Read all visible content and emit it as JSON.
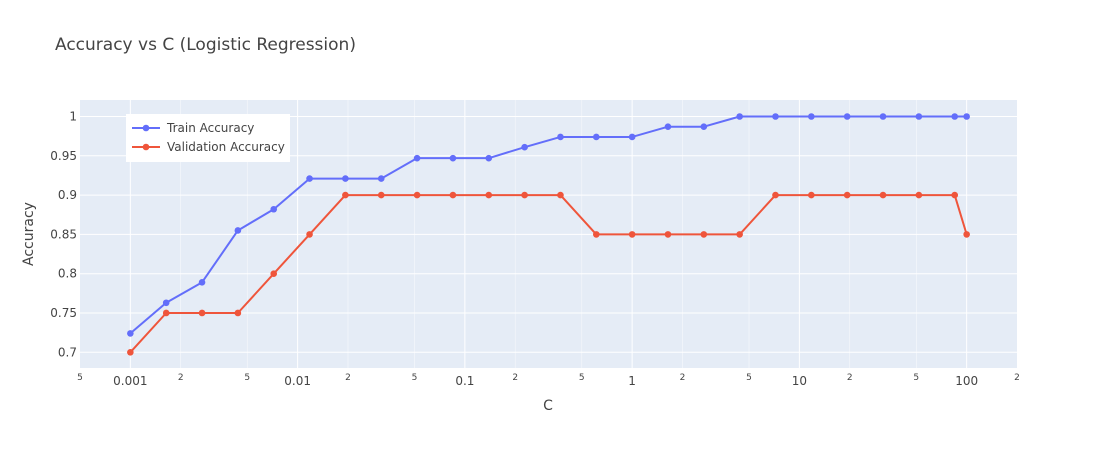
{
  "chart_data": {
    "type": "line",
    "title": "Accuracy vs C (Logistic Regression)",
    "xlabel": "C",
    "ylabel": "Accuracy",
    "x_scale": "log",
    "xlim": [
      0.0005,
      200
    ],
    "ylim": [
      0.68,
      1.021
    ],
    "grid": true,
    "legend_position": "top-left",
    "x": [
      0.001,
      0.001638,
      0.002683,
      0.004394,
      0.007197,
      0.011788,
      0.019307,
      0.031623,
      0.051795,
      0.084834,
      0.13895,
      0.227585,
      0.372759,
      0.61054,
      1.0,
      1.637894,
      2.682696,
      4.393971,
      7.196857,
      11.787686,
      19.306977,
      31.622777,
      51.794747,
      84.83429,
      100
    ],
    "series": [
      {
        "name": "Train Accuracy",
        "color": "#636efa",
        "values": [
          0.724,
          0.763,
          0.789,
          0.855,
          0.882,
          0.921,
          0.921,
          0.921,
          0.947,
          0.947,
          0.947,
          0.961,
          0.974,
          0.974,
          0.974,
          0.987,
          0.987,
          1.0,
          1.0,
          1.0,
          1.0,
          1.0,
          1.0,
          1.0,
          1.0
        ]
      },
      {
        "name": "Validation Accuracy",
        "color": "#ef553b",
        "values": [
          0.7,
          0.75,
          0.75,
          0.75,
          0.8,
          0.85,
          0.9,
          0.9,
          0.9,
          0.9,
          0.9,
          0.9,
          0.9,
          0.85,
          0.85,
          0.85,
          0.85,
          0.85,
          0.9,
          0.9,
          0.9,
          0.9,
          0.9,
          0.9,
          0.85
        ]
      }
    ],
    "y_ticks": [
      {
        "value": 0.7,
        "label": "0.7"
      },
      {
        "value": 0.75,
        "label": "0.75"
      },
      {
        "value": 0.8,
        "label": "0.8"
      },
      {
        "value": 0.85,
        "label": "0.85"
      },
      {
        "value": 0.9,
        "label": "0.9"
      },
      {
        "value": 0.95,
        "label": "0.95"
      },
      {
        "value": 1.0,
        "label": "1"
      }
    ],
    "x_major_ticks": [
      {
        "value": 0.001,
        "label": "0.001"
      },
      {
        "value": 0.01,
        "label": "0.01"
      },
      {
        "value": 0.1,
        "label": "0.1"
      },
      {
        "value": 1,
        "label": "1"
      },
      {
        "value": 10,
        "label": "10"
      },
      {
        "value": 100,
        "label": "100"
      }
    ],
    "x_minor_ticks": [
      {
        "value": 0.0005,
        "label": "5"
      },
      {
        "value": 0.002,
        "label": "2"
      },
      {
        "value": 0.005,
        "label": "5"
      },
      {
        "value": 0.02,
        "label": "2"
      },
      {
        "value": 0.05,
        "label": "5"
      },
      {
        "value": 0.2,
        "label": "2"
      },
      {
        "value": 0.5,
        "label": "5"
      },
      {
        "value": 2,
        "label": "2"
      },
      {
        "value": 5,
        "label": "5"
      },
      {
        "value": 20,
        "label": "2"
      },
      {
        "value": 50,
        "label": "5"
      },
      {
        "value": 200,
        "label": "2"
      }
    ],
    "colors": {
      "plot_background": "#e5ecf6",
      "grid": "#ffffff",
      "text": "#444444"
    }
  }
}
